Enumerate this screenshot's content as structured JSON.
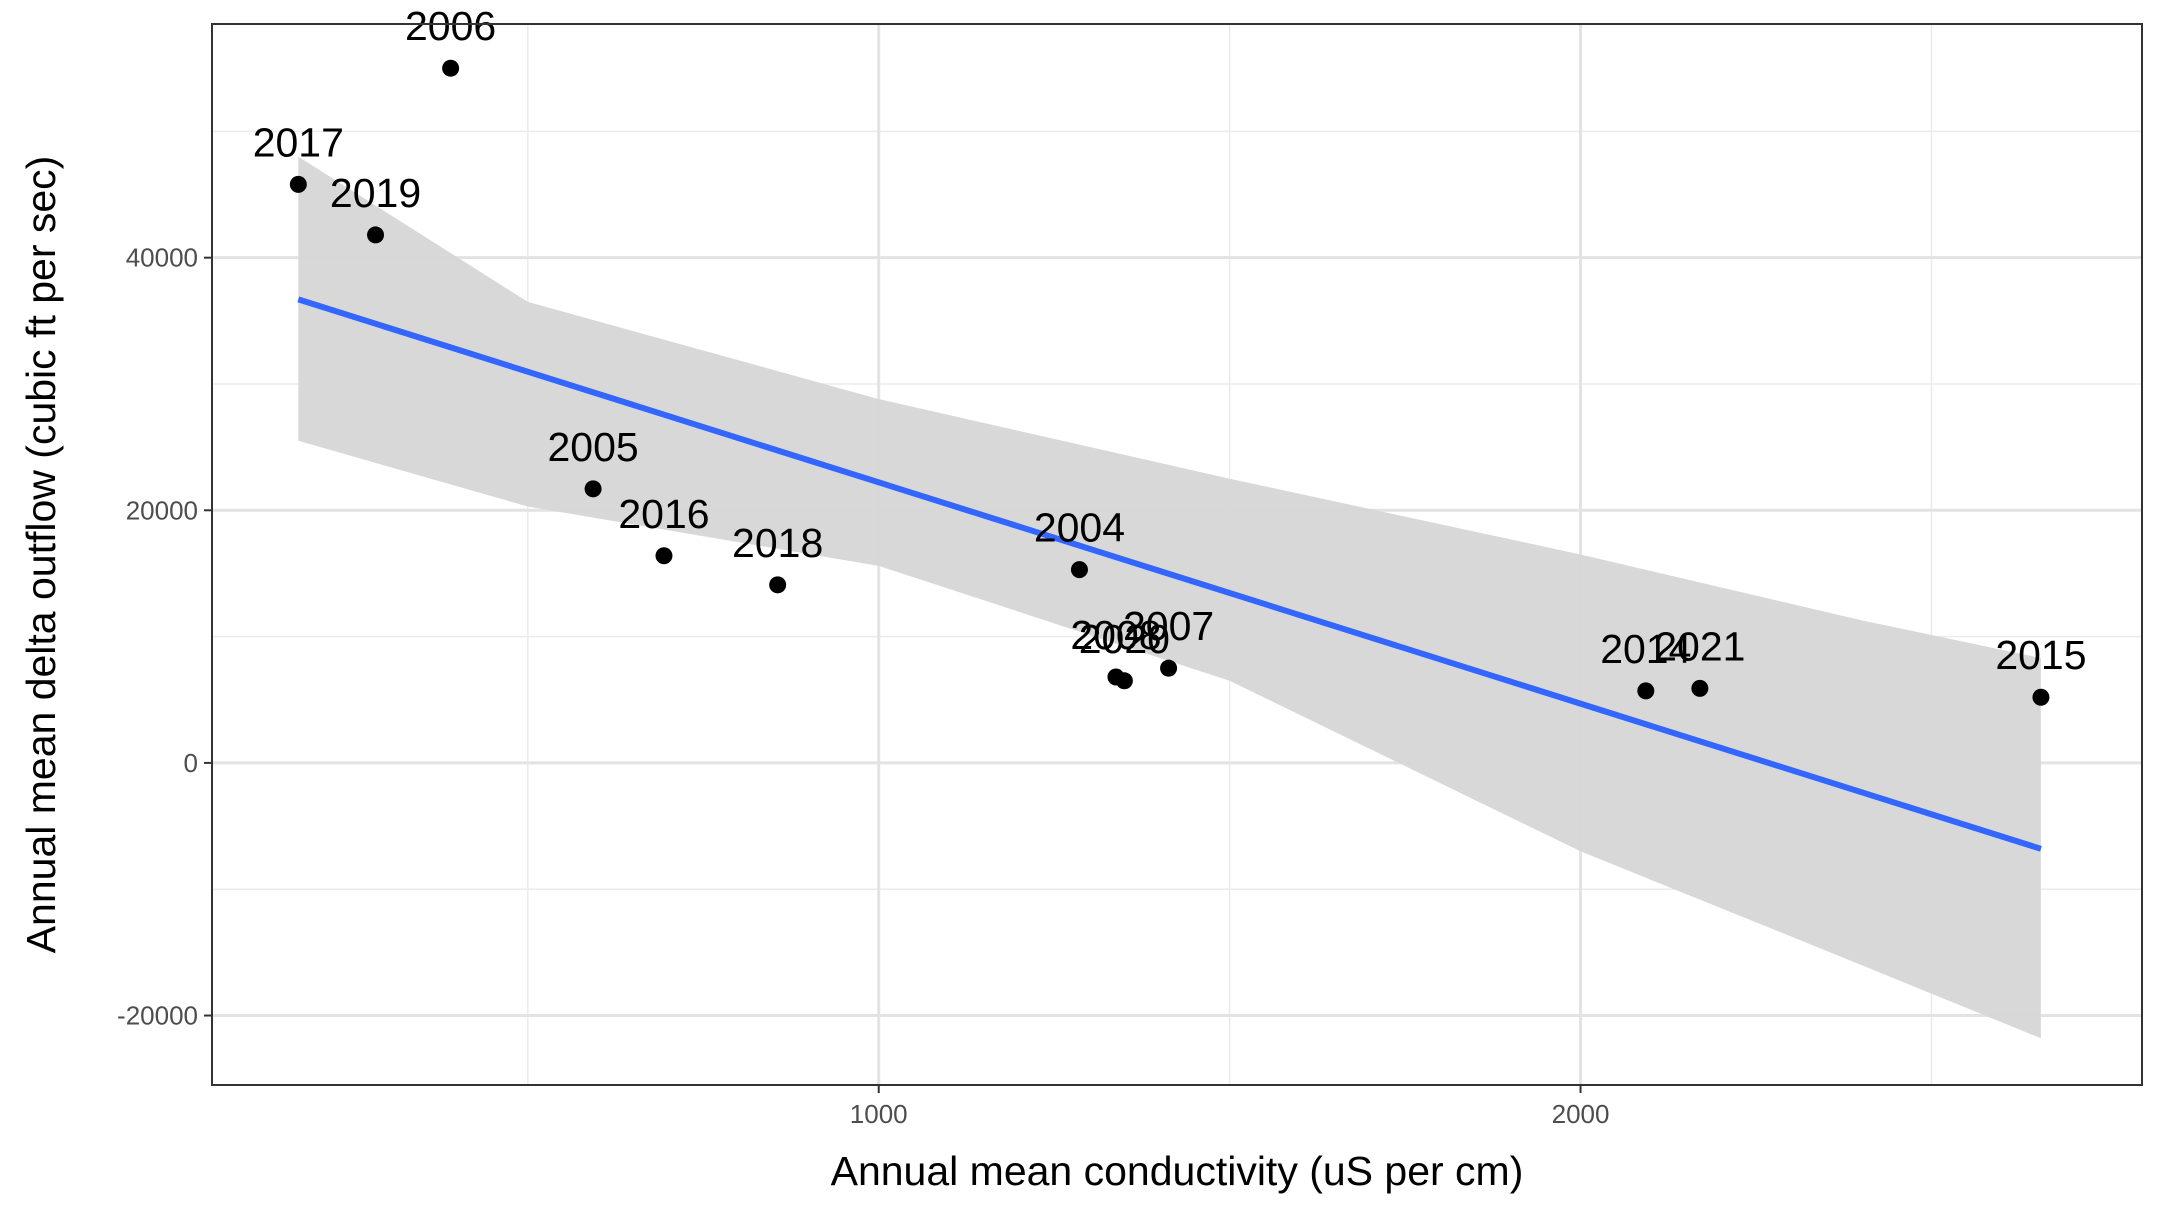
{
  "chart_data": {
    "type": "scatter",
    "title": "",
    "xlabel": "Annual mean conductivity (uS per cm)",
    "ylabel": "Annual mean delta outflow (cubic ft per sec)",
    "xlim": [
      50,
      2800
    ],
    "ylim": [
      -25500,
      58500
    ],
    "x_ticks": [
      1000,
      2000
    ],
    "x_tick_labels": [
      "1000",
      "2000"
    ],
    "y_ticks": [
      -20000,
      0,
      20000,
      40000
    ],
    "y_tick_labels": [
      "-20000",
      "0",
      "20000",
      "40000"
    ],
    "grid": true,
    "legend": "none",
    "points": [
      {
        "label": "2006",
        "x": 390,
        "y": 55000
      },
      {
        "label": "2017",
        "x": 173,
        "y": 45800
      },
      {
        "label": "2019",
        "x": 283,
        "y": 41800
      },
      {
        "label": "2005",
        "x": 593,
        "y": 21700
      },
      {
        "label": "2016",
        "x": 694,
        "y": 16400
      },
      {
        "label": "2018",
        "x": 856,
        "y": 14100
      },
      {
        "label": "2004",
        "x": 1286,
        "y": 15300
      },
      {
        "label": "2008",
        "x": 1338,
        "y": 6800
      },
      {
        "label": "2020",
        "x": 1350,
        "y": 6500
      },
      {
        "label": "2007",
        "x": 1413,
        "y": 7500
      },
      {
        "label": "2014",
        "x": 2093,
        "y": 5700
      },
      {
        "label": "2021",
        "x": 2170,
        "y": 5900
      },
      {
        "label": "2015",
        "x": 2656,
        "y": 5200
      }
    ],
    "fit_line": {
      "type": "linear",
      "color": "#3366ff",
      "x": [
        173,
        2656
      ],
      "y": [
        36700,
        -6800
      ]
    },
    "confidence_band": {
      "color": "#d6d6d6",
      "x": [
        173,
        500,
        1000,
        1500,
        2000,
        2400,
        2656
      ],
      "y_upper": [
        48000,
        36500,
        28800,
        22500,
        16500,
        11300,
        8300
      ],
      "y_lower": [
        25500,
        20300,
        15600,
        6500,
        -7000,
        -16000,
        -21800
      ]
    }
  }
}
